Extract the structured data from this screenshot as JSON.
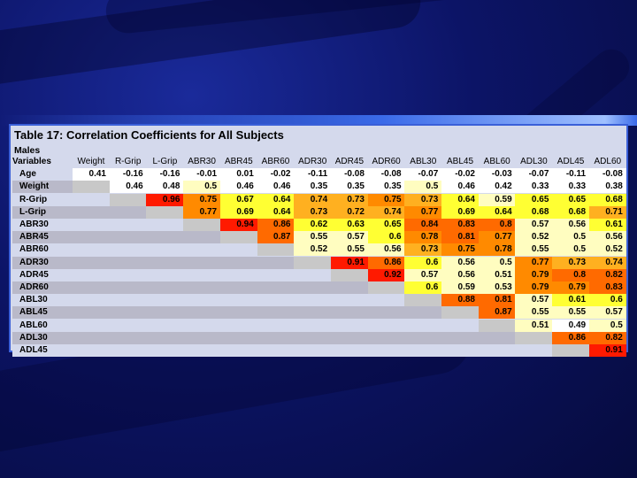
{
  "table": {
    "title": "Table 17: Correlation Coefficients for All Subjects",
    "group_label": "Males",
    "corner_label": "Variables",
    "columns": [
      "Weight",
      "R-Grip",
      "L-Grip",
      "ABR30",
      "ABR45",
      "ABR60",
      "ADR30",
      "ADR45",
      "ADR60",
      "ABL30",
      "ABL45",
      "ABL60",
      "ADL30",
      "ADL45",
      "ADL60"
    ],
    "rows": [
      {
        "label": "Age",
        "values": [
          "0.41",
          "-0.16",
          "-0.16",
          "-0.01",
          "0.01",
          "-0.02",
          "-0.11",
          "-0.08",
          "-0.08",
          "-0.07",
          "-0.02",
          "-0.03",
          "-0.07",
          "-0.11",
          "-0.08"
        ]
      },
      {
        "label": "Weight",
        "values": [
          "",
          "0.46",
          "0.48",
          "0.5",
          "0.46",
          "0.46",
          "0.35",
          "0.35",
          "0.35",
          "0.5",
          "0.46",
          "0.42",
          "0.33",
          "0.33",
          "0.38"
        ]
      },
      {
        "label": "R-Grip",
        "values": [
          "",
          "",
          "0.96",
          "0.75",
          "0.67",
          "0.64",
          "0.74",
          "0.73",
          "0.75",
          "0.73",
          "0.64",
          "0.59",
          "0.65",
          "0.65",
          "0.68"
        ]
      },
      {
        "label": "L-Grip",
        "values": [
          "",
          "",
          "",
          "0.77",
          "0.69",
          "0.64",
          "0.73",
          "0.72",
          "0.74",
          "0.77",
          "0.69",
          "0.64",
          "0.68",
          "0.68",
          "0.71"
        ]
      },
      {
        "label": "ABR30",
        "values": [
          "",
          "",
          "",
          "",
          "0.94",
          "0.86",
          "0.62",
          "0.63",
          "0.65",
          "0.84",
          "0.83",
          "0.8",
          "0.57",
          "0.56",
          "0.61"
        ]
      },
      {
        "label": "ABR45",
        "values": [
          "",
          "",
          "",
          "",
          "",
          "0.87",
          "0.55",
          "0.57",
          "0.6",
          "0.78",
          "0.81",
          "0.77",
          "0.52",
          "0.5",
          "0.56"
        ]
      },
      {
        "label": "ABR60",
        "values": [
          "",
          "",
          "",
          "",
          "",
          "",
          "0.52",
          "0.55",
          "0.56",
          "0.73",
          "0.75",
          "0.78",
          "0.55",
          "0.5",
          "0.52"
        ]
      },
      {
        "label": "ADR30",
        "values": [
          "",
          "",
          "",
          "",
          "",
          "",
          "",
          "0.91",
          "0.86",
          "0.6",
          "0.56",
          "0.5",
          "0.77",
          "0.73",
          "0.74"
        ]
      },
      {
        "label": "ADR45",
        "values": [
          "",
          "",
          "",
          "",
          "",
          "",
          "",
          "",
          "0.92",
          "0.57",
          "0.56",
          "0.51",
          "0.79",
          "0.8",
          "0.82"
        ]
      },
      {
        "label": "ADR60",
        "values": [
          "",
          "",
          "",
          "",
          "",
          "",
          "",
          "",
          "",
          "0.6",
          "0.59",
          "0.53",
          "0.79",
          "0.79",
          "0.83"
        ]
      },
      {
        "label": "ABL30",
        "values": [
          "",
          "",
          "",
          "",
          "",
          "",
          "",
          "",
          "",
          "",
          "0.88",
          "0.81",
          "0.57",
          "0.61",
          "0.6"
        ]
      },
      {
        "label": "ABL45",
        "values": [
          "",
          "",
          "",
          "",
          "",
          "",
          "",
          "",
          "",
          "",
          "",
          "0.87",
          "0.55",
          "0.55",
          "0.57"
        ]
      },
      {
        "label": "ABL60",
        "values": [
          "",
          "",
          "",
          "",
          "",
          "",
          "",
          "",
          "",
          "",
          "",
          "",
          "0.51",
          "0.49",
          "0.5"
        ]
      },
      {
        "label": "ADL30",
        "values": [
          "",
          "",
          "",
          "",
          "",
          "",
          "",
          "",
          "",
          "",
          "",
          "",
          "",
          "0.86",
          "0.82"
        ]
      },
      {
        "label": "ADL45",
        "values": [
          "",
          "",
          "",
          "",
          "",
          "",
          "",
          "",
          "",
          "",
          "",
          "",
          "",
          "",
          "0.91"
        ]
      }
    ]
  },
  "colors": {
    "row_band_a": "#d4d9ec",
    "row_band_b": "#b9b9c9",
    "neutral_cell": "#ffffff",
    "low_cell": "#fffdc0",
    "mid_cell": "#ffff33",
    "high_cell": "#ffb020",
    "higher_cell": "#ff8a00",
    "highest_cell": "#ff6a00",
    "max_cell": "#ff1a00",
    "diagonal_gray": "#c8c8c8"
  }
}
